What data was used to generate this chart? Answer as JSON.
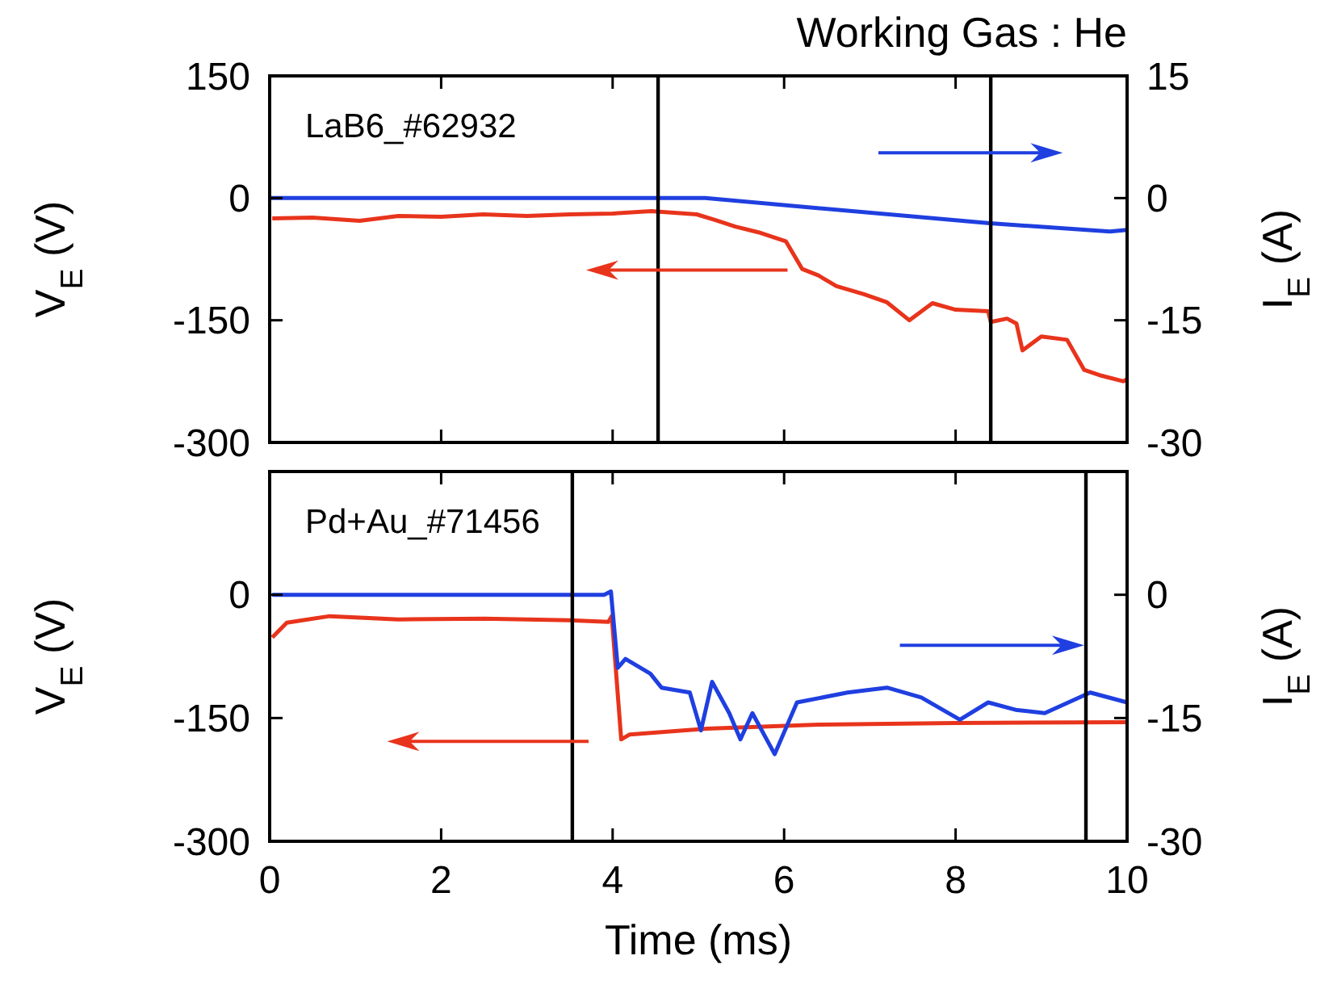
{
  "chart_data": [
    {
      "type": "line",
      "title": "Working Gas : He",
      "ylabel": "V$_{E}$ (V)",
      "y2label": "I$_{E}$ (A)",
      "annotations": [
        "LaB6_#62932"
      ],
      "xlim": [
        0,
        10
      ],
      "xticks": [
        0,
        2,
        4,
        6,
        8,
        10
      ],
      "ylim": [
        -300,
        150
      ],
      "yticks": [
        -300,
        -150,
        0,
        150
      ],
      "y2lim": [
        -30,
        15
      ],
      "y2ticks": [
        -30,
        -15,
        0,
        15
      ],
      "tick_labels": "y",
      "grid": false,
      "ref_lines": [
        {
          "axis": "x",
          "value": 4.53,
          "color": "#000000"
        },
        {
          "axis": "x",
          "value": 8.41,
          "color": "#000000"
        }
      ],
      "series": [
        {
          "color": "#e8341c",
          "axis": "y",
          "x": [
            0.03,
            0.5,
            1.05,
            1.5,
            2.0,
            2.49,
            3.0,
            3.5,
            4.0,
            4.45,
            4.98,
            5.2,
            5.43,
            5.7,
            6.02,
            6.21,
            6.4,
            6.61,
            6.93,
            7.2,
            7.46,
            7.73,
            8.0,
            8.38,
            8.41,
            8.6,
            8.71,
            8.78,
            9.0,
            9.3,
            9.5,
            9.7,
            9.96,
            10
          ],
          "values": [
            -25,
            -24,
            -28,
            -22,
            -23,
            -20,
            -22,
            -20,
            -19,
            -16,
            -20,
            -27,
            -35,
            -42,
            -53,
            -87,
            -95,
            -108,
            -118,
            -128,
            -150,
            -129,
            -137,
            -139,
            -152,
            -148,
            -154,
            -187,
            -170,
            -174,
            -211,
            -218,
            -225,
            -222
          ]
        },
        {
          "color": "#1f3fe0",
          "axis": "y2",
          "x": [
            0,
            5.08,
            8.4,
            9.8,
            10
          ],
          "values": [
            0,
            0,
            -3.1,
            -4.1,
            -3.9
          ]
        }
      ]
    },
    {
      "type": "line",
      "xlabel": "Time (ms)",
      "ylabel": "V$_{E}$ (V)",
      "y2label": "I$_{E}$ (A)",
      "annotations": [
        "Pd+Au_#71456"
      ],
      "xlim": [
        0,
        10
      ],
      "xticks": [
        0,
        2,
        4,
        6,
        8,
        10
      ],
      "ylim": [
        -300,
        150
      ],
      "yticks": [
        -300,
        -150,
        0
      ],
      "y2lim": [
        -30,
        15
      ],
      "y2ticks": [
        -30,
        -15,
        0
      ],
      "grid": false,
      "ref_lines": [
        {
          "axis": "x",
          "value": 3.53,
          "color": "#000000"
        },
        {
          "axis": "x",
          "value": 9.52,
          "color": "#000000"
        }
      ],
      "series": [
        {
          "color": "#e8341c",
          "axis": "y",
          "x": [
            0.03,
            0.2,
            0.7,
            1.5,
            2.5,
            3.5,
            3.95,
            3.99,
            4.1,
            4.2,
            5.1,
            6.4,
            8.0,
            10
          ],
          "values": [
            -52,
            -34,
            -26,
            -30,
            -29,
            -31,
            -33,
            -26,
            -176,
            -170,
            -163,
            -158,
            -156,
            -155
          ]
        },
        {
          "color": "#1f3fe0",
          "axis": "y2",
          "x": [
            0.03,
            1,
            2,
            3,
            3.9,
            3.98,
            4.06,
            4.15,
            4.44,
            4.57,
            4.9,
            5.03,
            5.16,
            5.36,
            5.49,
            5.63,
            5.89,
            6.15,
            6.74,
            7.2,
            7.6,
            8.05,
            8.38,
            8.7,
            9.04,
            9.57,
            10
          ],
          "values": [
            0,
            0,
            0,
            0,
            0,
            0.4,
            -8.9,
            -7.8,
            -9.6,
            -11.3,
            -11.9,
            -16.5,
            -10.6,
            -14.4,
            -17.6,
            -14.4,
            -19.4,
            -13.1,
            -11.9,
            -11.3,
            -12.5,
            -15.2,
            -13.1,
            -14.0,
            -14.4,
            -11.9,
            -13.1
          ]
        }
      ]
    }
  ]
}
